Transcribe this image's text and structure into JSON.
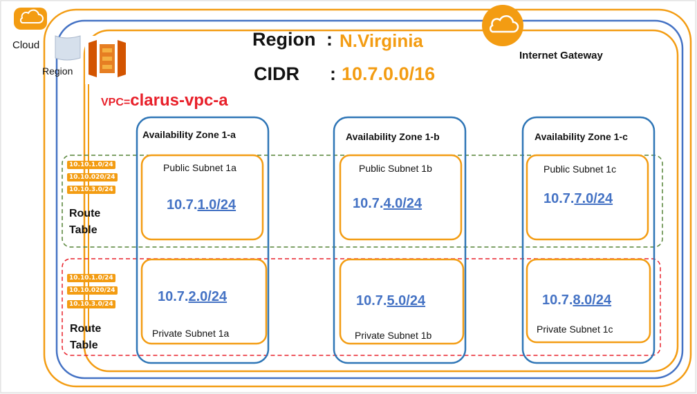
{
  "labels": {
    "cloud": "Cloud",
    "region": "Region",
    "region_heading": "Region",
    "region_colon": ":",
    "region_value": "N.Virginia",
    "cidr_heading": "CIDR",
    "cidr_colon": ":",
    "cidr_value": "10.7.0.0/16",
    "vpc_prefix": "VPC=",
    "vpc_name": "clarus-vpc-a",
    "internet_gateway": "Internet Gateway"
  },
  "route_tables": [
    {
      "tags": [
        "10.10.1.0/24",
        "10.10.020/24",
        "10.10.3.0/24"
      ],
      "label_line1": "Route",
      "label_line2": "Table"
    },
    {
      "tags": [
        "10.10.1.0/24",
        "10.10.020/24",
        "10.10.3.0/24"
      ],
      "label_line1": "Route",
      "label_line2": "Table"
    }
  ],
  "zones": [
    {
      "title": "Availability Zone 1-a",
      "public": {
        "name": "Public Subnet 1a",
        "cidr_prefix": "10.7.",
        "cidr_suffix": "1.0/24"
      },
      "private": {
        "name": "Private Subnet 1a",
        "cidr_prefix": "10.7.",
        "cidr_suffix": "2.0/24"
      }
    },
    {
      "title": "Availability Zone 1-b",
      "public": {
        "name": "Public Subnet 1b",
        "cidr_prefix": "10.7.",
        "cidr_suffix": "4.0/24"
      },
      "private": {
        "name": "Private Subnet 1b",
        "cidr_prefix": "10.7.",
        "cidr_suffix": "5.0/24"
      }
    },
    {
      "title": "Availability Zone 1-c",
      "public": {
        "name": "Public Subnet 1c",
        "cidr_prefix": "10.7.",
        "cidr_suffix": "7.0/24"
      },
      "private": {
        "name": "Private Subnet 1c",
        "cidr_prefix": "10.7.",
        "cidr_suffix": "8.0/24"
      }
    }
  ],
  "colors": {
    "orange": "#f39c12",
    "blue": "#2e75b6",
    "cidr_blue": "#4472c4",
    "vpc_red": "#e8202a",
    "public_group": "#548235",
    "private_group": "#e8202a"
  }
}
